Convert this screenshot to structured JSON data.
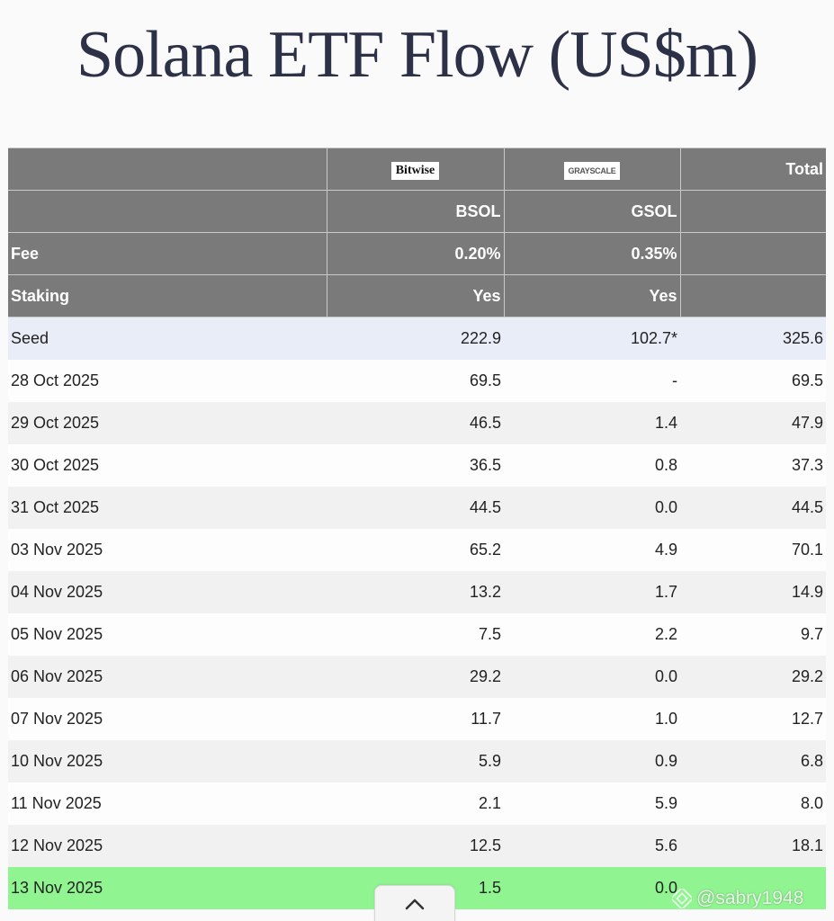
{
  "chart_data": {
    "type": "table",
    "title": "Solana ETF Flow (US$m)",
    "header": {
      "issuers": [
        "Bitwise",
        "GRAYSCALE"
      ],
      "total_label": "Total",
      "tickers": [
        "BSOL",
        "GSOL"
      ],
      "fee_label": "Fee",
      "fees": [
        "0.20%",
        "0.35%"
      ],
      "staking_label": "Staking",
      "staking": [
        "Yes",
        "Yes"
      ]
    },
    "columns": [
      "",
      "BSOL",
      "GSOL",
      "Total"
    ],
    "rows": [
      {
        "label": "Seed",
        "bsol": "222.9",
        "gsol": "102.7*",
        "total": "325.6"
      },
      {
        "label": "28 Oct 2025",
        "bsol": "69.5",
        "gsol": "-",
        "total": "69.5"
      },
      {
        "label": "29 Oct 2025",
        "bsol": "46.5",
        "gsol": "1.4",
        "total": "47.9"
      },
      {
        "label": "30 Oct 2025",
        "bsol": "36.5",
        "gsol": "0.8",
        "total": "37.3"
      },
      {
        "label": "31 Oct 2025",
        "bsol": "44.5",
        "gsol": "0.0",
        "total": "44.5"
      },
      {
        "label": "03 Nov 2025",
        "bsol": "65.2",
        "gsol": "4.9",
        "total": "70.1"
      },
      {
        "label": "04 Nov 2025",
        "bsol": "13.2",
        "gsol": "1.7",
        "total": "14.9"
      },
      {
        "label": "05 Nov 2025",
        "bsol": "7.5",
        "gsol": "2.2",
        "total": "9.7"
      },
      {
        "label": "06 Nov 2025",
        "bsol": "29.2",
        "gsol": "0.0",
        "total": "29.2"
      },
      {
        "label": "07 Nov 2025",
        "bsol": "11.7",
        "gsol": "1.0",
        "total": "12.7"
      },
      {
        "label": "10 Nov 2025",
        "bsol": "5.9",
        "gsol": "0.9",
        "total": "6.8"
      },
      {
        "label": "11 Nov 2025",
        "bsol": "2.1",
        "gsol": "5.9",
        "total": "8.0"
      },
      {
        "label": "12 Nov 2025",
        "bsol": "12.5",
        "gsol": "5.6",
        "total": "18.1"
      },
      {
        "label": "13 Nov 2025",
        "bsol": "1.5",
        "gsol": "0.0",
        "total": ""
      }
    ],
    "colors": {
      "header_bg": "#7a7a7a",
      "seed_row_bg": "#e8edf7",
      "highlight_row_bg": "#90f590",
      "title_color": "#2c3148"
    }
  },
  "ui": {
    "scroll_up_icon": "chevron-up-icon",
    "watermark_text": "@sabry1948",
    "watermark_icon": "binance-diamond-icon"
  }
}
